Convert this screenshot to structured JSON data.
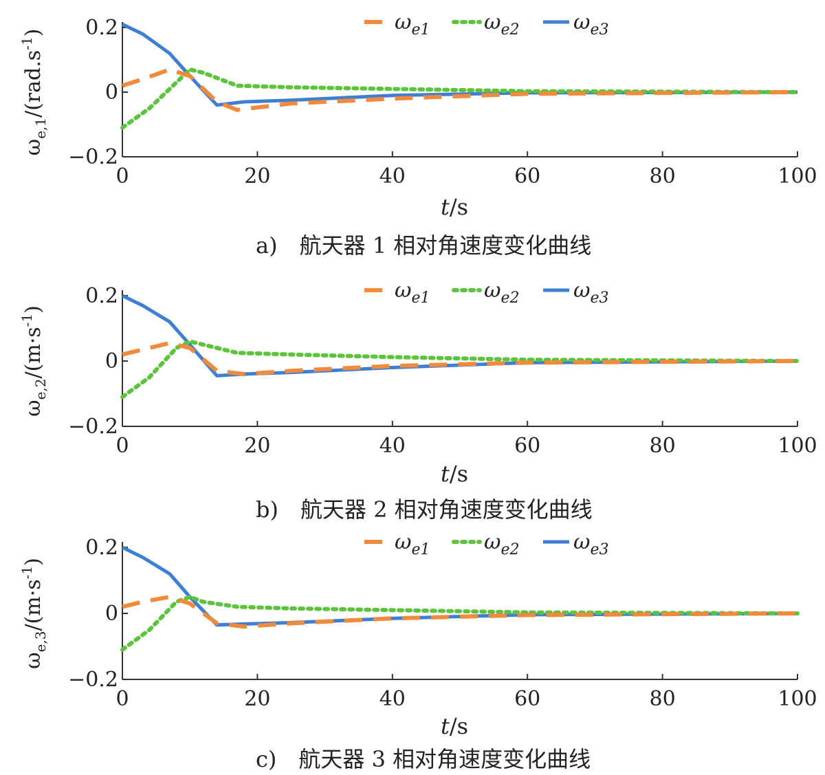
{
  "chart_data": [
    {
      "type": "line",
      "panel": "a",
      "caption": "a)　航天器 1 相对角速度变化曲线",
      "xlabel": "t/s",
      "ylabel": "ω_{e,1}/(rad.s^{-1})",
      "xlim": [
        0,
        100
      ],
      "ylim": [
        -0.2,
        0.2
      ],
      "xticks": [
        "0",
        "20",
        "40",
        "60",
        "80",
        "100"
      ],
      "yticks": [
        "-0.2",
        "0",
        "0.2"
      ],
      "legend_position": "top-center",
      "series": [
        {
          "name": "ωe1",
          "style": "dashed",
          "color": "#f08a3c",
          "x": [
            0,
            3,
            7,
            10,
            14,
            17,
            25,
            40,
            60,
            100
          ],
          "y": [
            0.02,
            0.04,
            0.07,
            0.05,
            -0.03,
            -0.055,
            -0.035,
            -0.02,
            -0.005,
            0.0
          ]
        },
        {
          "name": "ωe2",
          "style": "dotted",
          "color": "#5cc33c",
          "x": [
            0,
            4,
            8,
            10,
            12,
            17,
            25,
            40,
            60,
            100
          ],
          "y": [
            -0.11,
            -0.05,
            0.03,
            0.07,
            0.06,
            0.02,
            0.015,
            0.01,
            0.003,
            0.0
          ]
        },
        {
          "name": "ωe3",
          "style": "solid",
          "color": "#3f7fd1",
          "x": [
            0,
            3,
            7,
            10,
            14,
            18,
            25,
            40,
            60,
            100
          ],
          "y": [
            0.21,
            0.18,
            0.12,
            0.05,
            -0.04,
            -0.03,
            -0.025,
            -0.01,
            -0.002,
            0.0
          ]
        }
      ]
    },
    {
      "type": "line",
      "panel": "b",
      "caption": "b)　航天器 2 相对角速度变化曲线",
      "xlabel": "t/s",
      "ylabel": "ω_{e,2}/(m·s^{-1})",
      "xlim": [
        0,
        100
      ],
      "ylim": [
        -0.2,
        0.2
      ],
      "xticks": [
        "0",
        "20",
        "40",
        "60",
        "80",
        "100"
      ],
      "yticks": [
        "-0.2",
        "0",
        "0.2"
      ],
      "legend_position": "top-center",
      "series": [
        {
          "name": "ωe1",
          "style": "dashed",
          "color": "#f08a3c",
          "x": [
            0,
            3,
            7,
            10,
            14,
            18,
            25,
            40,
            60,
            100
          ],
          "y": [
            0.02,
            0.035,
            0.055,
            0.04,
            -0.03,
            -0.04,
            -0.03,
            -0.015,
            -0.005,
            0.0
          ]
        },
        {
          "name": "ωe2",
          "style": "dotted",
          "color": "#5cc33c",
          "x": [
            0,
            4,
            8,
            10,
            12,
            17,
            25,
            40,
            60,
            100
          ],
          "y": [
            -0.11,
            -0.05,
            0.04,
            0.06,
            0.05,
            0.025,
            0.02,
            0.012,
            0.004,
            0.0
          ]
        },
        {
          "name": "ωe3",
          "style": "solid",
          "color": "#3f7fd1",
          "x": [
            0,
            3,
            7,
            10,
            14,
            18,
            25,
            40,
            60,
            100
          ],
          "y": [
            0.2,
            0.17,
            0.12,
            0.05,
            -0.045,
            -0.04,
            -0.035,
            -0.02,
            -0.005,
            0.0
          ]
        }
      ]
    },
    {
      "type": "line",
      "panel": "c",
      "caption": "c)　航天器 3 相对角速度变化曲线",
      "xlabel": "t/s",
      "ylabel": "ω_{e,3}/(m·s^{-1})",
      "xlim": [
        0,
        100
      ],
      "ylim": [
        -0.2,
        0.2
      ],
      "xticks": [
        "0",
        "20",
        "40",
        "60",
        "80",
        "100"
      ],
      "yticks": [
        "-0.2",
        "0",
        "0.2"
      ],
      "legend_position": "top-center",
      "series": [
        {
          "name": "ωe1",
          "style": "dashed",
          "color": "#f08a3c",
          "x": [
            0,
            3,
            7,
            10,
            14,
            18,
            25,
            40,
            60,
            100
          ],
          "y": [
            0.02,
            0.035,
            0.05,
            0.03,
            -0.03,
            -0.04,
            -0.03,
            -0.015,
            -0.005,
            0.0
          ]
        },
        {
          "name": "ωe2",
          "style": "dotted",
          "color": "#5cc33c",
          "x": [
            0,
            4,
            8,
            10,
            12,
            17,
            25,
            40,
            60,
            100
          ],
          "y": [
            -0.11,
            -0.05,
            0.035,
            0.05,
            0.035,
            0.02,
            0.015,
            0.01,
            0.003,
            0.0
          ]
        },
        {
          "name": "ωe3",
          "style": "solid",
          "color": "#3f7fd1",
          "x": [
            0,
            3,
            7,
            10,
            14,
            18,
            25,
            40,
            60,
            100
          ],
          "y": [
            0.2,
            0.17,
            0.12,
            0.05,
            -0.035,
            -0.032,
            -0.028,
            -0.015,
            -0.004,
            0.0
          ]
        }
      ]
    }
  ]
}
